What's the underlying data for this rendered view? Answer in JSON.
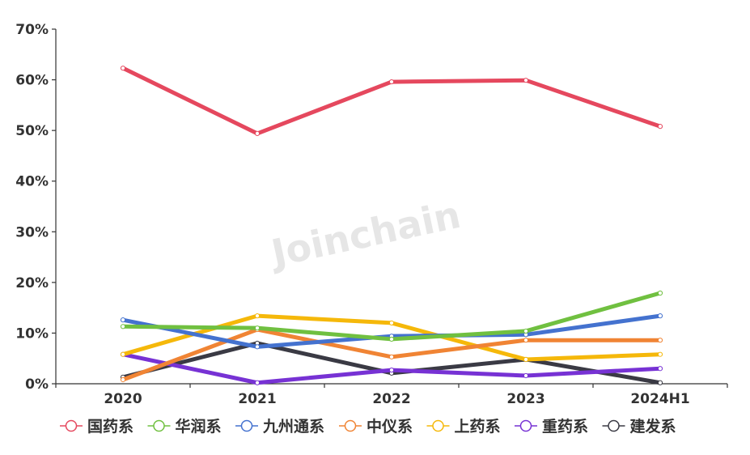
{
  "chart_data": {
    "type": "line",
    "title": "",
    "xlabel": "",
    "ylabel": "",
    "categories": [
      "2020",
      "2021",
      "2022",
      "2023",
      "2024H1"
    ],
    "yticks": [
      "0%",
      "10%",
      "20%",
      "30%",
      "40%",
      "50%",
      "60%",
      "70%"
    ],
    "ylim": [
      0,
      70
    ],
    "grid": false,
    "legend_position": "bottom",
    "watermark": "Joinchain",
    "series": [
      {
        "name": "国药系",
        "color": "#e5485e",
        "values": [
          62.3,
          49.4,
          59.6,
          59.9,
          50.8
        ]
      },
      {
        "name": "华润系",
        "color": "#70c040",
        "values": [
          11.3,
          11.0,
          8.8,
          10.4,
          17.9
        ]
      },
      {
        "name": "九州通系",
        "color": "#4472cf",
        "values": [
          12.6,
          7.3,
          9.4,
          9.7,
          13.4
        ]
      },
      {
        "name": "中仪系",
        "color": "#f08434",
        "values": [
          0.8,
          10.7,
          5.3,
          8.6,
          8.6
        ]
      },
      {
        "name": "上药系",
        "color": "#f5b80a",
        "values": [
          5.8,
          13.4,
          12.0,
          4.8,
          5.8
        ]
      },
      {
        "name": "重药系",
        "color": "#7732d4",
        "values": [
          5.8,
          0.2,
          2.7,
          1.6,
          3.0
        ]
      },
      {
        "name": "建发系",
        "color": "#3a3a44",
        "values": [
          1.3,
          8.0,
          2.1,
          4.8,
          0.2
        ]
      }
    ]
  }
}
